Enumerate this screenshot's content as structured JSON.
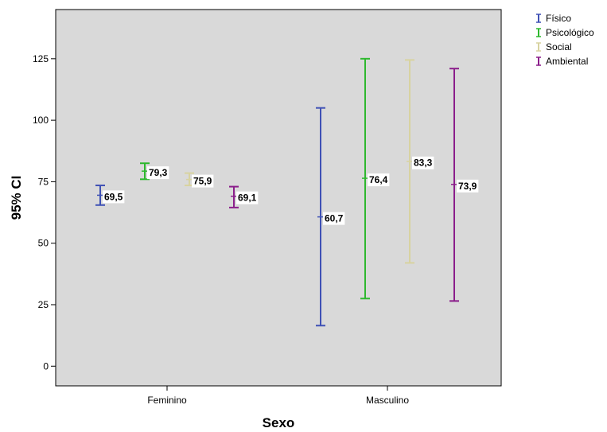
{
  "chart_data": {
    "type": "errorbar",
    "xlabel": "Sexo",
    "ylabel": "95% CI",
    "ylim": [
      -8,
      145
    ],
    "yticks": [
      0,
      25,
      50,
      75,
      100,
      125
    ],
    "categories": [
      "Feminino",
      "Masculino"
    ],
    "legend_position": "top-right-outside",
    "grid": false,
    "background": "#d9d9d9",
    "series": [
      {
        "name": "Físico",
        "color": "#3f51b5",
        "mean": [
          69.5,
          60.7
        ],
        "mean_labels": [
          "69,5",
          "60,7"
        ],
        "lower": [
          65.5,
          16.5
        ],
        "upper": [
          73.5,
          105.0
        ]
      },
      {
        "name": "Psicológico",
        "color": "#2eb82e",
        "mean": [
          79.3,
          76.4
        ],
        "mean_labels": [
          "79,3",
          "76,4"
        ],
        "lower": [
          76.0,
          27.5
        ],
        "upper": [
          82.5,
          125.0
        ]
      },
      {
        "name": "Social",
        "color": "#d8d3a0",
        "mean": [
          75.9,
          83.3
        ],
        "mean_labels": [
          "75,9",
          "83,3"
        ],
        "lower": [
          73.5,
          42.0
        ],
        "upper": [
          78.5,
          124.5
        ]
      },
      {
        "name": "Ambiental",
        "color": "#8b1e8b",
        "mean": [
          69.1,
          73.9
        ],
        "mean_labels": [
          "69,1",
          "73,9"
        ],
        "lower": [
          64.5,
          26.5
        ],
        "upper": [
          73.0,
          121.0
        ]
      }
    ]
  }
}
